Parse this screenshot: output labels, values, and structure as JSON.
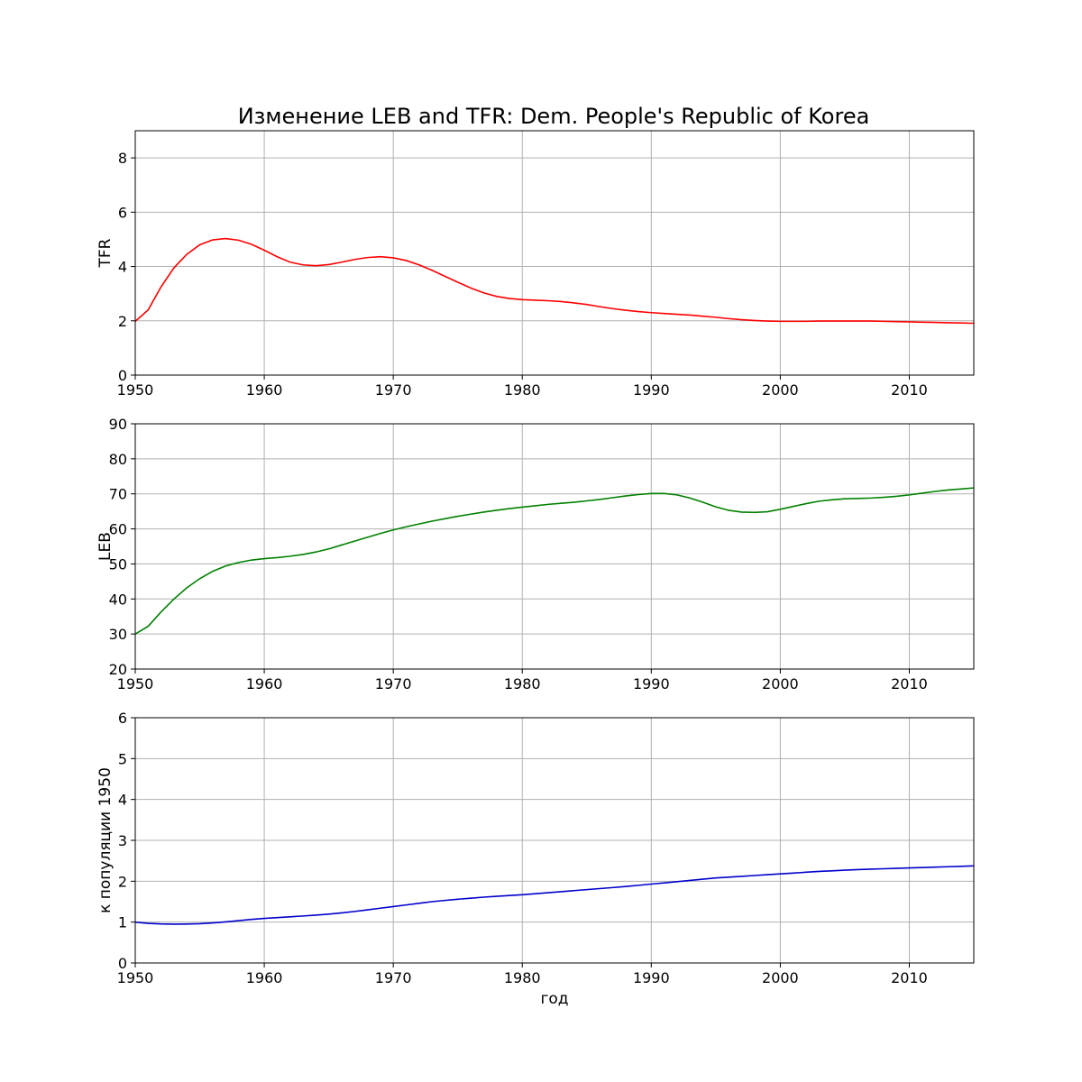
{
  "chart_data": [
    {
      "type": "line",
      "title": "Изменение LEB and TFR: Dem. People's Republic of Korea",
      "xlabel": "",
      "ylabel": "TFR",
      "xlim": [
        1950,
        2015
      ],
      "ylim": [
        0,
        9
      ],
      "xticks": [
        1950,
        1960,
        1970,
        1980,
        1990,
        2000,
        2010
      ],
      "yticks": [
        0,
        2,
        4,
        6,
        8
      ],
      "grid": true,
      "color": "#ff0000",
      "x": [
        1950,
        1951,
        1952,
        1953,
        1954,
        1955,
        1956,
        1957,
        1958,
        1959,
        1960,
        1961,
        1962,
        1963,
        1964,
        1965,
        1966,
        1967,
        1968,
        1969,
        1970,
        1971,
        1972,
        1973,
        1974,
        1975,
        1976,
        1977,
        1978,
        1979,
        1980,
        1981,
        1982,
        1983,
        1984,
        1985,
        1986,
        1987,
        1988,
        1989,
        1990,
        1991,
        1992,
        1993,
        1994,
        1995,
        1996,
        1997,
        1998,
        1999,
        2000,
        2001,
        2002,
        2003,
        2004,
        2005,
        2006,
        2007,
        2008,
        2009,
        2010,
        2011,
        2012,
        2013,
        2014,
        2015
      ],
      "y": [
        1.98,
        2.4,
        3.25,
        3.95,
        4.45,
        4.8,
        4.98,
        5.03,
        4.97,
        4.82,
        4.6,
        4.36,
        4.16,
        4.06,
        4.03,
        4.07,
        4.16,
        4.26,
        4.33,
        4.36,
        4.32,
        4.22,
        4.06,
        3.86,
        3.64,
        3.42,
        3.21,
        3.03,
        2.9,
        2.82,
        2.78,
        2.76,
        2.74,
        2.71,
        2.66,
        2.6,
        2.52,
        2.45,
        2.39,
        2.34,
        2.3,
        2.27,
        2.24,
        2.21,
        2.17,
        2.13,
        2.08,
        2.04,
        2.01,
        1.99,
        1.98,
        1.98,
        1.98,
        1.99,
        1.99,
        1.99,
        1.99,
        1.99,
        1.98,
        1.97,
        1.96,
        1.95,
        1.94,
        1.93,
        1.92,
        1.91
      ]
    },
    {
      "type": "line",
      "xlabel": "",
      "ylabel": "LEB",
      "xlim": [
        1950,
        2015
      ],
      "ylim": [
        20,
        90
      ],
      "xticks": [
        1950,
        1960,
        1970,
        1980,
        1990,
        2000,
        2010
      ],
      "yticks": [
        20,
        30,
        40,
        50,
        60,
        70,
        80,
        90
      ],
      "grid": true,
      "color": "#008000",
      "x": [
        1950,
        1951,
        1952,
        1953,
        1954,
        1955,
        1956,
        1957,
        1958,
        1959,
        1960,
        1961,
        1962,
        1963,
        1964,
        1965,
        1966,
        1967,
        1968,
        1969,
        1970,
        1971,
        1972,
        1973,
        1974,
        1975,
        1976,
        1977,
        1978,
        1979,
        1980,
        1981,
        1982,
        1983,
        1984,
        1985,
        1986,
        1987,
        1988,
        1989,
        1990,
        1991,
        1992,
        1993,
        1994,
        1995,
        1996,
        1997,
        1998,
        1999,
        2000,
        2001,
        2002,
        2003,
        2004,
        2005,
        2006,
        2007,
        2008,
        2009,
        2010,
        2011,
        2012,
        2013,
        2014,
        2015
      ],
      "y": [
        30,
        32.2,
        36.3,
        40,
        43.2,
        45.8,
        47.9,
        49.4,
        50.4,
        51.1,
        51.5,
        51.8,
        52.2,
        52.7,
        53.4,
        54.3,
        55.4,
        56.5,
        57.6,
        58.7,
        59.7,
        60.6,
        61.4,
        62.2,
        62.9,
        63.6,
        64.2,
        64.8,
        65.3,
        65.8,
        66.2,
        66.6,
        67,
        67.3,
        67.6,
        68,
        68.4,
        68.9,
        69.4,
        69.8,
        70.1,
        70.1,
        69.7,
        68.8,
        67.6,
        66.3,
        65.3,
        64.8,
        64.7,
        64.9,
        65.6,
        66.4,
        67.2,
        67.9,
        68.3,
        68.6,
        68.7,
        68.8,
        69,
        69.3,
        69.7,
        70.2,
        70.7,
        71.1,
        71.4,
        71.7
      ]
    },
    {
      "type": "line",
      "xlabel": "год",
      "ylabel": "к популяции 1950",
      "xlim": [
        1950,
        2015
      ],
      "ylim": [
        0,
        6
      ],
      "xticks": [
        1950,
        1960,
        1970,
        1980,
        1990,
        2000,
        2010
      ],
      "yticks": [
        0,
        1,
        2,
        3,
        4,
        5,
        6
      ],
      "grid": true,
      "color": "#0000cc",
      "x": [
        1950,
        1951,
        1952,
        1953,
        1954,
        1955,
        1956,
        1957,
        1958,
        1959,
        1960,
        1961,
        1962,
        1963,
        1964,
        1965,
        1966,
        1967,
        1968,
        1969,
        1970,
        1971,
        1972,
        1973,
        1974,
        1975,
        1976,
        1977,
        1978,
        1979,
        1980,
        1981,
        1982,
        1983,
        1984,
        1985,
        1986,
        1987,
        1988,
        1989,
        1990,
        1991,
        1992,
        1993,
        1994,
        1995,
        1996,
        1997,
        1998,
        1999,
        2000,
        2001,
        2002,
        2003,
        2004,
        2005,
        2006,
        2007,
        2008,
        2009,
        2010,
        2011,
        2012,
        2013,
        2014,
        2015
      ],
      "y": [
        1,
        0.97,
        0.955,
        0.95,
        0.952,
        0.96,
        0.98,
        1.005,
        1.035,
        1.065,
        1.09,
        1.11,
        1.13,
        1.15,
        1.17,
        1.195,
        1.225,
        1.26,
        1.3,
        1.34,
        1.38,
        1.42,
        1.46,
        1.5,
        1.53,
        1.56,
        1.585,
        1.61,
        1.63,
        1.65,
        1.67,
        1.695,
        1.72,
        1.745,
        1.77,
        1.795,
        1.82,
        1.845,
        1.87,
        1.9,
        1.93,
        1.96,
        1.99,
        2.02,
        2.05,
        2.08,
        2.1,
        2.12,
        2.14,
        2.16,
        2.18,
        2.2,
        2.22,
        2.24,
        2.255,
        2.27,
        2.285,
        2.295,
        2.305,
        2.315,
        2.325,
        2.335,
        2.345,
        2.355,
        2.365,
        2.375
      ]
    }
  ]
}
